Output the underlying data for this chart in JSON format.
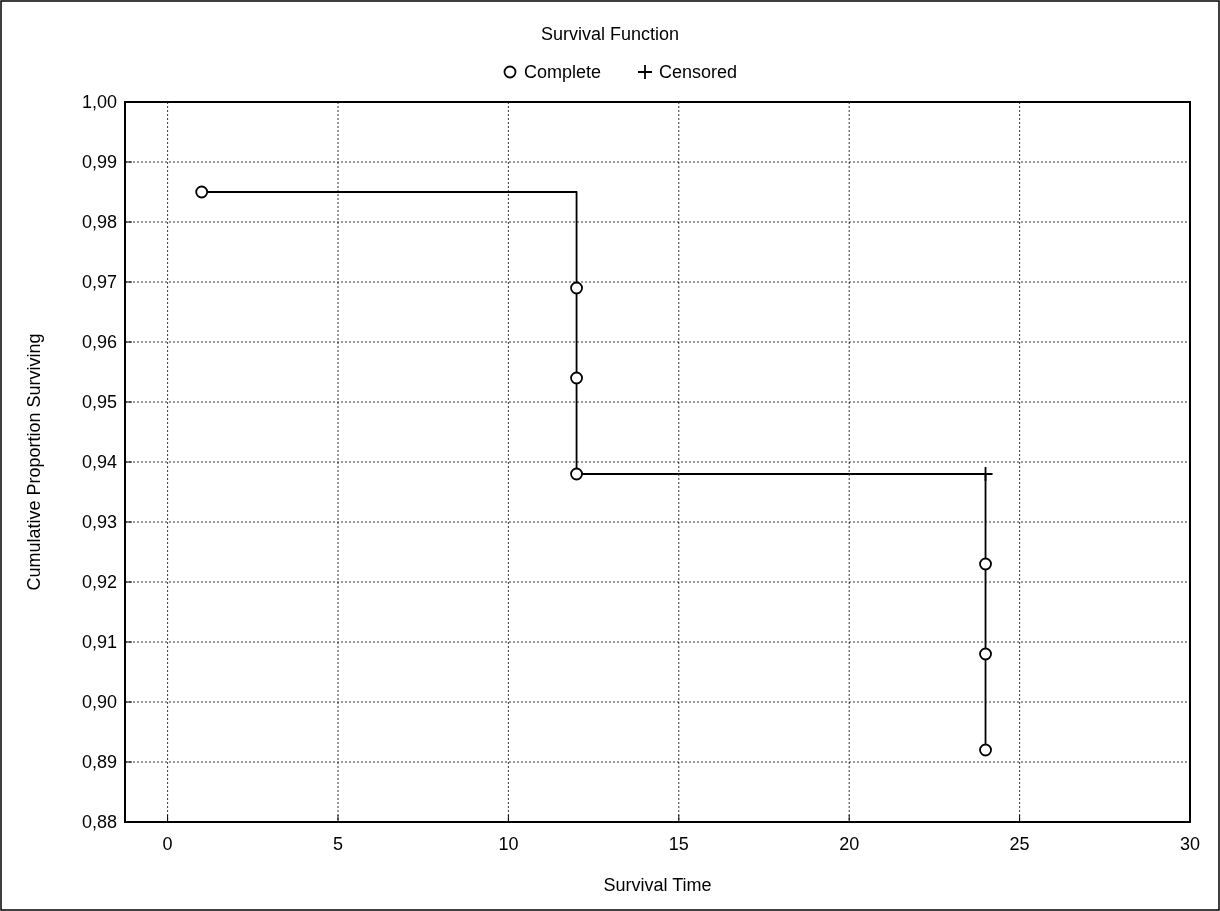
{
  "chart_data": {
    "type": "scatter",
    "title": "Survival Function",
    "xlabel": "Survival Time",
    "ylabel": "Cumulative Proportion Surviving",
    "series": [
      {
        "type": "step",
        "color": "#000000",
        "x": [
          1,
          12,
          24
        ],
        "values": [
          0.985,
          0.938,
          0.892
        ]
      },
      {
        "name": "Complete",
        "color": "#000000",
        "marker": "circle",
        "x": [
          1,
          12,
          12,
          12,
          24,
          24,
          24
        ],
        "values": [
          0.985,
          0.969,
          0.954,
          0.938,
          0.923,
          0.908,
          0.892
        ]
      },
      {
        "name": "Censored",
        "color": "#000000",
        "marker": "cross",
        "x": [
          24
        ],
        "values": [
          0.938
        ]
      }
    ],
    "xlim": [
      -1.25,
      30
    ],
    "xticks": [
      0,
      5,
      10,
      15,
      20,
      25,
      30
    ],
    "ylim": [
      0.88,
      1.0
    ],
    "yticks": [
      {
        "value": 0.88,
        "label": "0,88"
      },
      {
        "value": 0.89,
        "label": "0,89"
      },
      {
        "value": 0.9,
        "label": "0,90"
      },
      {
        "value": 0.91,
        "label": "0,91"
      },
      {
        "value": 0.92,
        "label": "0,92"
      },
      {
        "value": 0.93,
        "label": "0,93"
      },
      {
        "value": 0.94,
        "label": "0,94"
      },
      {
        "value": 0.95,
        "label": "0,95"
      },
      {
        "value": 0.96,
        "label": "0,96"
      },
      {
        "value": 0.97,
        "label": "0,97"
      },
      {
        "value": 0.98,
        "label": "0,98"
      },
      {
        "value": 0.99,
        "label": "0,99"
      },
      {
        "value": 1.0,
        "label": "1,00"
      }
    ],
    "grid": true,
    "legend": "top"
  }
}
